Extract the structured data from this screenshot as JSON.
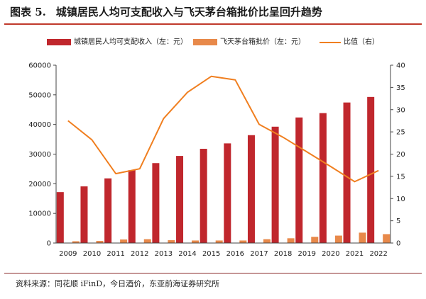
{
  "figure": {
    "number": "图表 5.",
    "title": "城镇居民人均可支配收入与飞天茅台箱批价比呈回升趋势",
    "source": "资料来源：同花顺 iFinD，今日酒价，东亚前海证券研究所"
  },
  "colors": {
    "income": "#c0272d",
    "price": "#e8894a",
    "ratio": "#f07f20",
    "accent": "#c0392b"
  },
  "chart_data": {
    "type": "bar",
    "categories": [
      "2009",
      "2010",
      "2011",
      "2012",
      "2013",
      "2014",
      "2015",
      "2016",
      "2017",
      "2018",
      "2019",
      "2020",
      "2021",
      "2022"
    ],
    "series": [
      {
        "name": "城镇居民人均可支配收入（左：元）",
        "type": "bar",
        "axis": "left",
        "values": [
          17175,
          19109,
          21810,
          24565,
          26955,
          29381,
          31790,
          33616,
          36396,
          39251,
          42359,
          43834,
          47412,
          49283
        ]
      },
      {
        "name": "飞天茅台箱批价（左：元）",
        "type": "bar",
        "axis": "left",
        "values": [
          600,
          700,
          1200,
          1300,
          950,
          850,
          850,
          850,
          1300,
          1600,
          2100,
          2500,
          3500,
          3000
        ]
      },
      {
        "name": "比值（右）",
        "type": "line",
        "axis": "right",
        "values": [
          27.5,
          23.2,
          15.6,
          16.7,
          28.0,
          33.9,
          37.5,
          36.7,
          26.7,
          23.8,
          20.5,
          17.2,
          13.8,
          16.3
        ]
      }
    ],
    "y_left": {
      "min": 0,
      "max": 60000,
      "ticks": [
        0,
        10000,
        20000,
        30000,
        40000,
        50000,
        60000
      ]
    },
    "y_right": {
      "min": 0,
      "max": 40,
      "ticks": [
        0,
        5,
        10,
        15,
        20,
        25,
        30,
        35,
        40
      ]
    },
    "grid": false,
    "legend_position": "top"
  }
}
